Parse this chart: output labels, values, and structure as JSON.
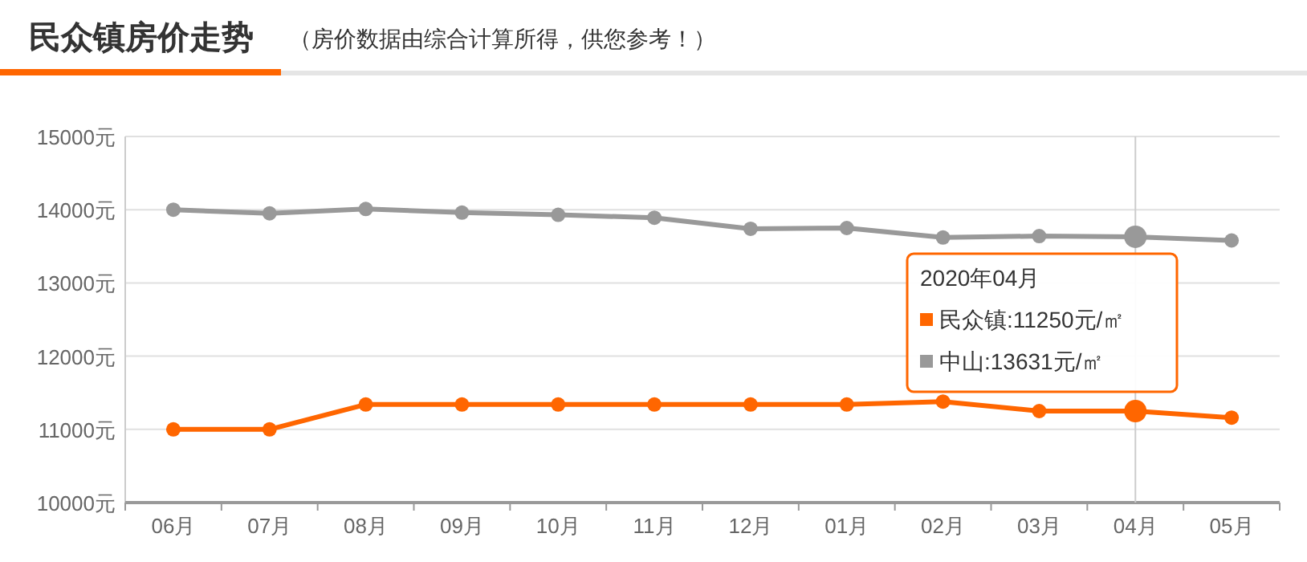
{
  "chart_data": {
    "type": "line",
    "title": "民众镇房价走势",
    "subtitle": "（房价数据由综合计算所得，供您参考！）",
    "categories": [
      "06月",
      "07月",
      "08月",
      "09月",
      "10月",
      "11月",
      "12月",
      "01月",
      "02月",
      "03月",
      "04月",
      "05月"
    ],
    "series": [
      {
        "name": "中山:13631元/㎡",
        "color": "#999999",
        "values": [
          14000,
          13950,
          14010,
          13960,
          13930,
          13890,
          13740,
          13750,
          13620,
          13640,
          13630,
          13580
        ]
      },
      {
        "name": "民众镇:11250元/㎡",
        "color": "#ff6600",
        "values": [
          11000,
          11000,
          11340,
          11340,
          11340,
          11340,
          11340,
          11340,
          11380,
          11250,
          11250,
          11160
        ]
      }
    ],
    "ylim": [
      10000,
      15000
    ],
    "yticks": [
      {
        "value": 10000,
        "label": "10000元"
      },
      {
        "value": 11000,
        "label": "11000元"
      },
      {
        "value": 12000,
        "label": "12000元"
      },
      {
        "value": 13000,
        "label": "13000元"
      },
      {
        "value": 14000,
        "label": "14000元"
      },
      {
        "value": 15000,
        "label": "15000元"
      }
    ],
    "grid": "y",
    "marker": "circle",
    "line_style": "solid",
    "ref_lines": [
      {
        "axis": "x",
        "value": "04月",
        "color": "#cccccc"
      }
    ],
    "legend": "right",
    "legend_title": "2020年04月"
  }
}
